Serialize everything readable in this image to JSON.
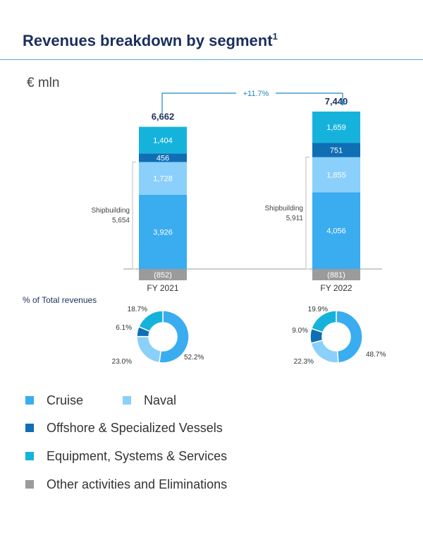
{
  "header": {
    "title": "Revenues breakdown by segment",
    "title_footnote": "1",
    "unit": "€ mln"
  },
  "chart_data": {
    "type": "bar",
    "stacked": true,
    "categories": [
      "FY 2021",
      "FY 2022"
    ],
    "series": [
      {
        "name": "Cruise",
        "values": [
          3926,
          4056
        ],
        "labels": [
          "3,926",
          "4,056"
        ],
        "color": "#3aacf0"
      },
      {
        "name": "Naval",
        "values": [
          1728,
          1855
        ],
        "labels": [
          "1,728",
          "1,855"
        ],
        "color": "#8ad0fa"
      },
      {
        "name": "Offshore & Specialized Vessels",
        "values": [
          456,
          751
        ],
        "labels": [
          "456",
          "751"
        ],
        "color": "#0f6eb4"
      },
      {
        "name": "Equipment, Systems & Services",
        "values": [
          1404,
          1659
        ],
        "labels": [
          "1,404",
          "1,659"
        ],
        "color": "#15b3dc"
      },
      {
        "name": "Other activities and Eliminations",
        "values": [
          -852,
          -881
        ],
        "labels": [
          "(852)",
          "(881)"
        ],
        "color": "#9b9b9b"
      }
    ],
    "totals": {
      "values": [
        6662,
        7440
      ],
      "labels": [
        "6,662",
        "7,440"
      ]
    },
    "shipbuilding": {
      "label": "Shipbuilding",
      "values": [
        5654,
        5911
      ],
      "labels": [
        "5,654",
        "5,911"
      ]
    },
    "growth_label": "+11.7%",
    "grid": false,
    "legend_position": "bottom"
  },
  "donuts": {
    "title": "% of Total revenues",
    "charts": [
      {
        "category": "FY 2021",
        "slices": [
          {
            "name": "Cruise",
            "value": 52.2,
            "label": "52.2%"
          },
          {
            "name": "Naval",
            "value": 23.0,
            "label": "23.0%"
          },
          {
            "name": "Offshore & Specialized Vessels",
            "value": 6.1,
            "label": "6.1%"
          },
          {
            "name": "Equipment, Systems & Services",
            "value": 18.7,
            "label": "18.7%"
          }
        ]
      },
      {
        "category": "FY 2022",
        "slices": [
          {
            "name": "Cruise",
            "value": 48.7,
            "label": "48.7%"
          },
          {
            "name": "Naval",
            "value": 22.3,
            "label": "22.3%"
          },
          {
            "name": "Offshore & Specialized Vessels",
            "value": 9.0,
            "label": "9.0%"
          },
          {
            "name": "Equipment, Systems & Services",
            "value": 19.9,
            "label": "19.9%"
          }
        ]
      }
    ]
  },
  "legend": {
    "items": [
      {
        "label": "Cruise",
        "color": "#3aacf0"
      },
      {
        "label": "Naval",
        "color": "#8ad0fa"
      },
      {
        "label": "Offshore & Specialized Vessels",
        "color": "#0f6eb4"
      },
      {
        "label": "Equipment, Systems & Services",
        "color": "#15b3dc"
      },
      {
        "label": "Other activities and Eliminations",
        "color": "#9b9b9b"
      }
    ]
  }
}
